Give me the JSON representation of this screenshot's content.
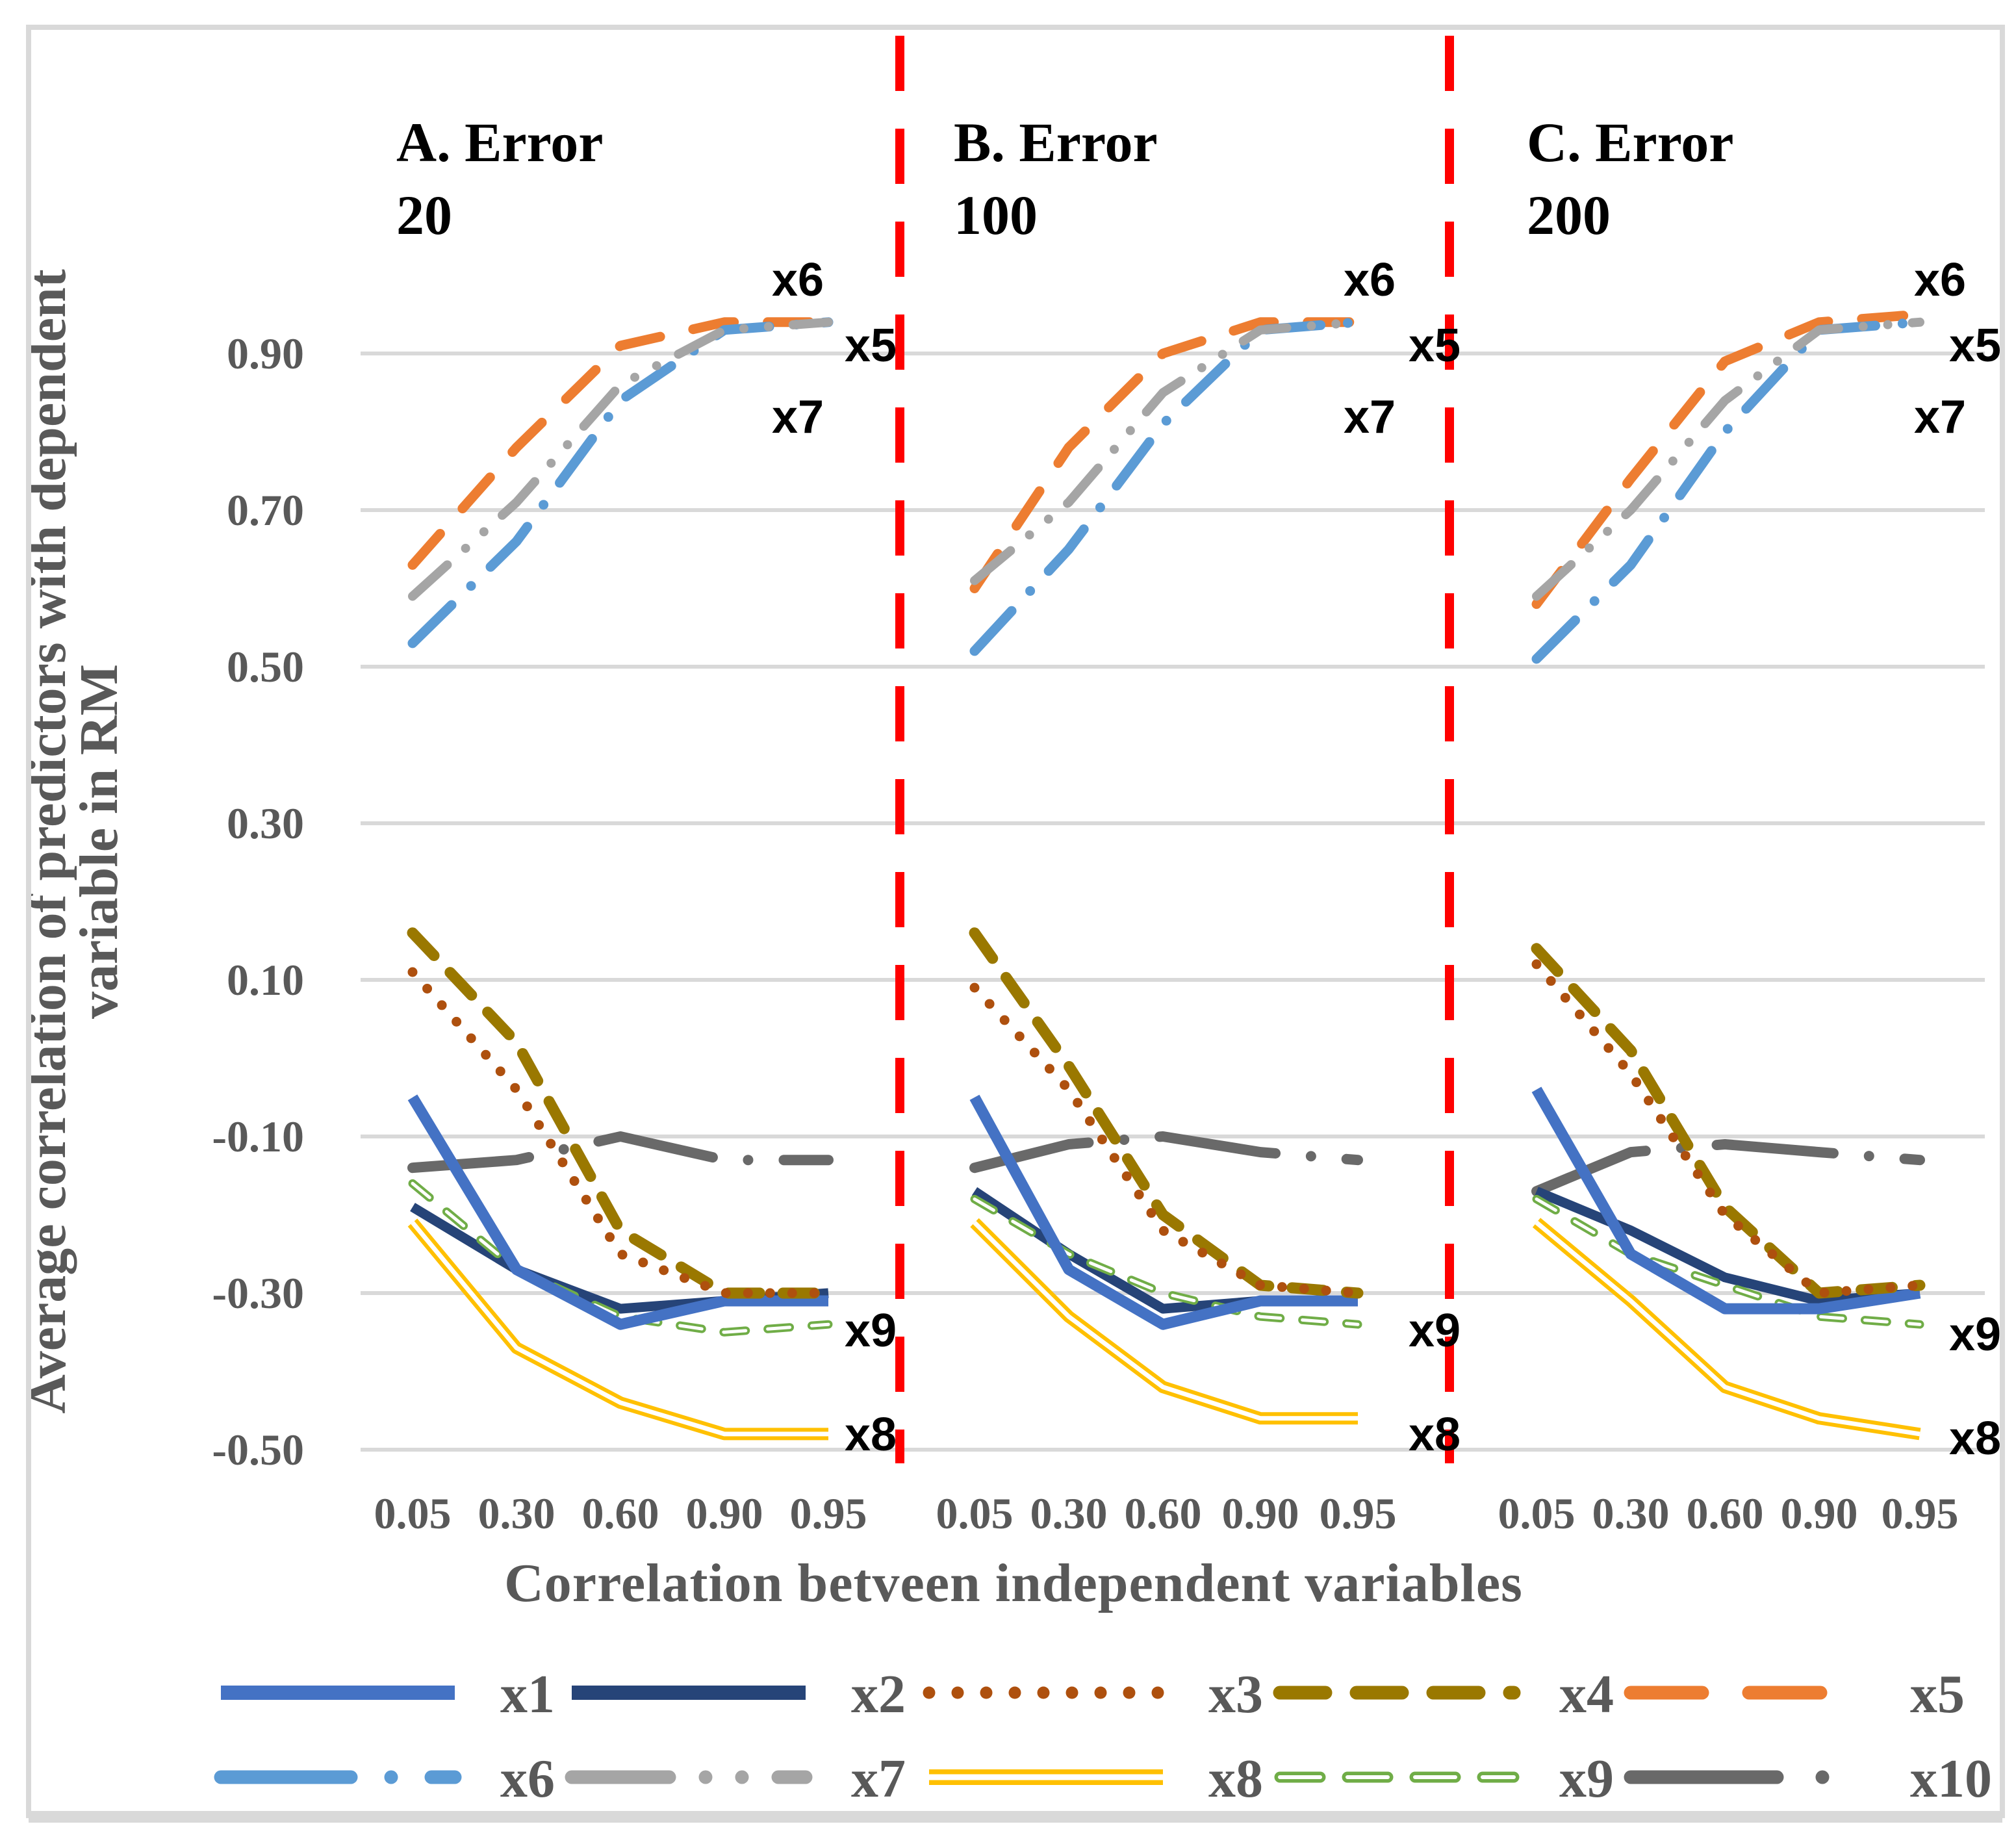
{
  "chart_data": {
    "type": "line",
    "xlabel": "Correlation betveen independent variables",
    "ylabel_lines": [
      "Average correlation of predictors with dependent",
      "variable in RM"
    ],
    "x_categories": [
      "0.05",
      "0.30",
      "0.60",
      "0.90",
      "0.95"
    ],
    "y_ticks": [
      "0.90",
      "0.70",
      "0.50",
      "0.30",
      "0.10",
      "-0.10",
      "-0.30",
      "-0.50"
    ],
    "ylim": [
      -0.5,
      0.9
    ],
    "grid": true,
    "legend_position": "bottom",
    "legend_rows": [
      [
        "x1",
        "x2",
        "x3",
        "x4",
        "x5"
      ],
      [
        "x6",
        "x7",
        "x8",
        "x9",
        "x10"
      ]
    ],
    "series_colors": {
      "x1": "#4472C4",
      "x2": "#264478",
      "x3": "#AE500E",
      "x4": "#9A7800",
      "x5": "#ED7D31",
      "x6": "#5B9BD5",
      "x7": "#A5A5A5",
      "x8": "#FFC000",
      "x9": "#70AD47",
      "x10": "#696969"
    },
    "gridline_color": "#D9D9D9",
    "divider_color": "#FF0000",
    "axis_text_color": "#595959",
    "title_text_color": "#000000",
    "panels": [
      {
        "id": "A",
        "title_lines": [
          "A. Error",
          "20"
        ],
        "series": {
          "x1": [
            -0.05,
            -0.27,
            -0.34,
            -0.31,
            -0.31
          ],
          "x2": [
            -0.19,
            -0.27,
            -0.32,
            -0.31,
            -0.3
          ],
          "x3": [
            0.11,
            -0.04,
            -0.25,
            -0.3,
            -0.3
          ],
          "x4": [
            0.16,
            0.02,
            -0.22,
            -0.3,
            -0.3
          ],
          "x5": [
            0.63,
            0.78,
            0.91,
            0.94,
            0.94
          ],
          "x6": [
            0.53,
            0.66,
            0.84,
            0.93,
            0.94
          ],
          "x7": [
            0.59,
            0.71,
            0.86,
            0.93,
            0.94
          ],
          "x8": [
            -0.21,
            -0.37,
            -0.44,
            -0.48,
            -0.48
          ],
          "x9": [
            -0.16,
            -0.27,
            -0.33,
            -0.35,
            -0.34
          ],
          "x10": [
            -0.14,
            -0.13,
            -0.1,
            -0.13,
            -0.13
          ]
        },
        "annotations": [
          "x6",
          "x5",
          "x7",
          "x9",
          "x8"
        ]
      },
      {
        "id": "B",
        "title_lines": [
          "B. Error",
          "100"
        ],
        "series": {
          "x1": [
            -0.05,
            -0.27,
            -0.34,
            -0.31,
            -0.31
          ],
          "x2": [
            -0.17,
            -0.25,
            -0.32,
            -0.31,
            -0.31
          ],
          "x3": [
            0.09,
            -0.04,
            -0.22,
            -0.29,
            -0.3
          ],
          "x4": [
            0.16,
            -0.01,
            -0.2,
            -0.29,
            -0.3
          ],
          "x5": [
            0.6,
            0.78,
            0.9,
            0.94,
            0.94
          ],
          "x6": [
            0.52,
            0.65,
            0.81,
            0.93,
            0.94
          ],
          "x7": [
            0.61,
            0.71,
            0.85,
            0.93,
            0.94
          ],
          "x8": [
            -0.21,
            -0.33,
            -0.42,
            -0.46,
            -0.46
          ],
          "x9": [
            -0.18,
            -0.25,
            -0.3,
            -0.33,
            -0.34
          ],
          "x10": [
            -0.14,
            -0.11,
            -0.1,
            -0.12,
            -0.13
          ]
        },
        "annotations": [
          "x6",
          "x5",
          "x7",
          "x9",
          "x8"
        ]
      },
      {
        "id": "C",
        "title_lines": [
          "C. Error",
          "200"
        ],
        "series": {
          "x1": [
            -0.04,
            -0.25,
            -0.32,
            -0.32,
            -0.3
          ],
          "x2": [
            -0.17,
            -0.22,
            -0.28,
            -0.31,
            -0.3
          ],
          "x3": [
            0.12,
            -0.02,
            -0.2,
            -0.3,
            -0.29
          ],
          "x4": [
            0.14,
            0.01,
            -0.19,
            -0.3,
            -0.29
          ],
          "x5": [
            0.58,
            0.74,
            0.89,
            0.94,
            0.95
          ],
          "x6": [
            0.51,
            0.63,
            0.8,
            0.93,
            0.94
          ],
          "x7": [
            0.59,
            0.7,
            0.84,
            0.93,
            0.94
          ],
          "x8": [
            -0.21,
            -0.31,
            -0.42,
            -0.46,
            -0.48
          ],
          "x9": [
            -0.18,
            -0.25,
            -0.29,
            -0.33,
            -0.34
          ],
          "x10": [
            -0.17,
            -0.12,
            -0.11,
            -0.12,
            -0.13
          ]
        },
        "annotations": [
          "x6",
          "x5",
          "x7",
          "x9",
          "x8"
        ]
      }
    ]
  }
}
